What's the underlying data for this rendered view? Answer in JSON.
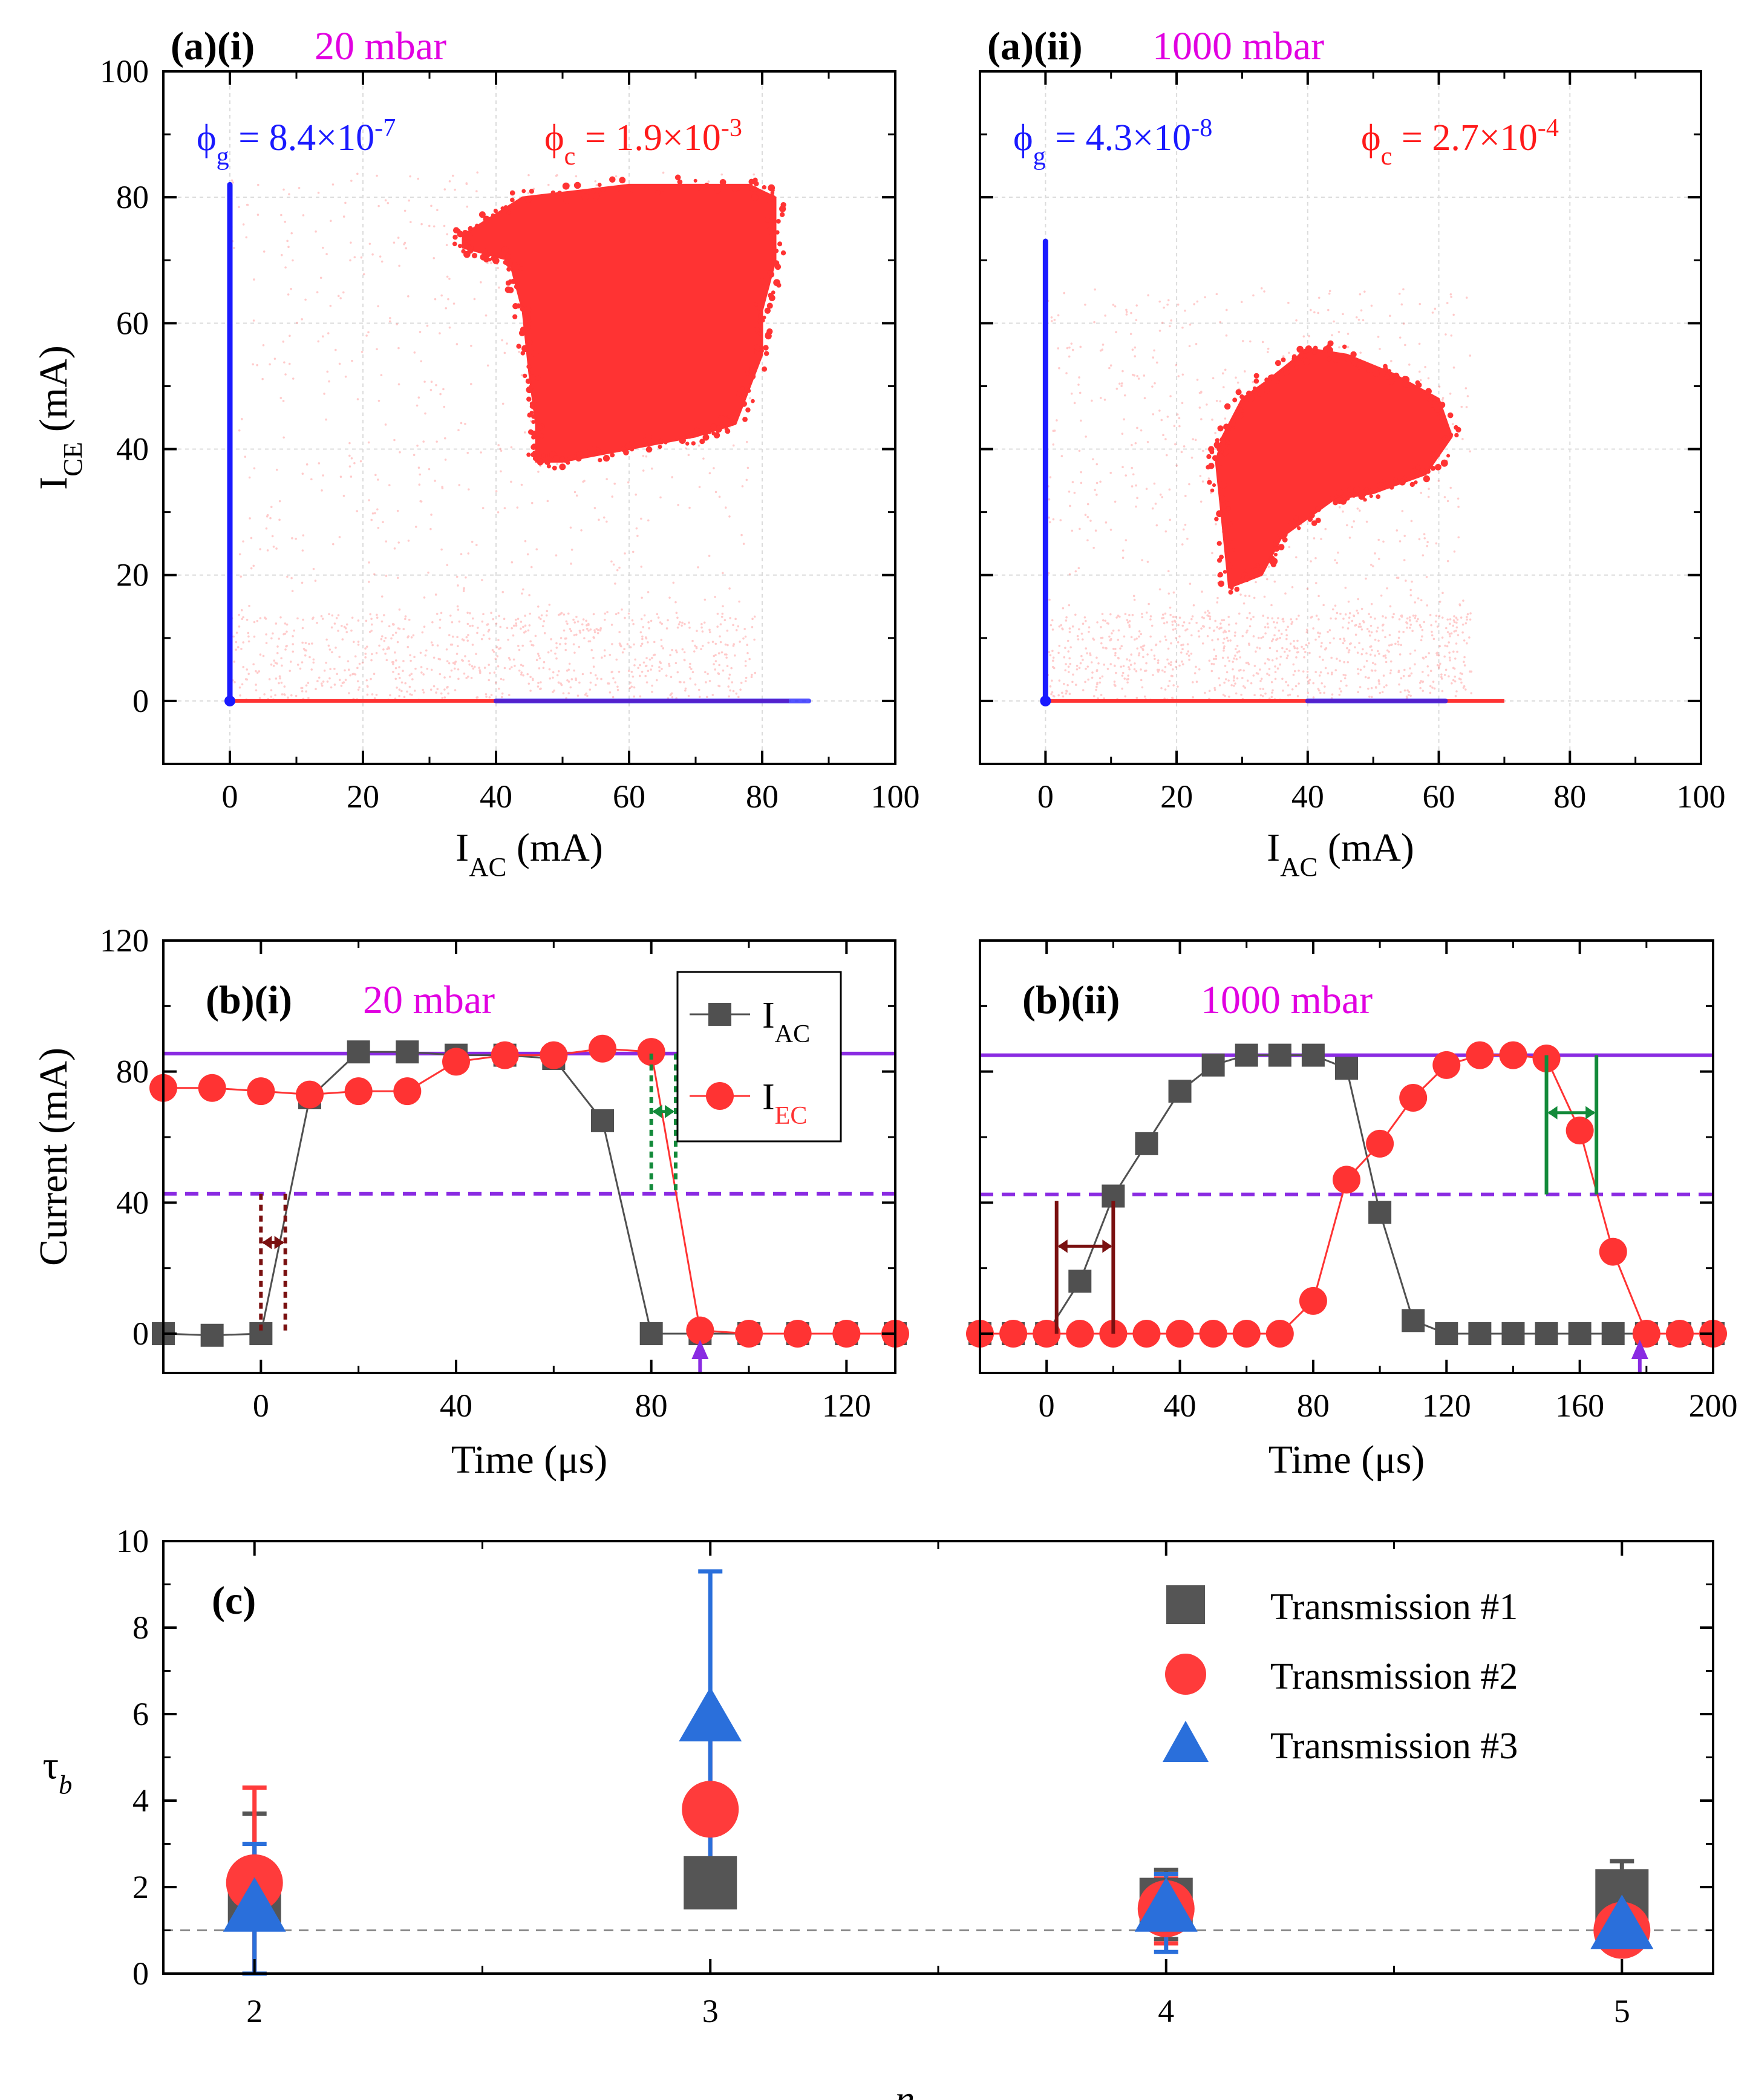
{
  "colors": {
    "gap_blue": "#1a1aff",
    "cell_red": "#ff3333",
    "ac_gray": "#505050",
    "pressure_magenta": "#e100e1",
    "level_purple": "#8a2be2",
    "tau_blue": "#2a6fdb",
    "tau_red": "#ff3b3b",
    "tau_gray": "#555555",
    "dark_red": "#7a1010",
    "green": "#138a3a"
  },
  "chart_data": [
    {
      "panel": "a-i",
      "type": "scatter",
      "label": "(a)(i)",
      "pressure": "20 mbar",
      "xlabel": "I",
      "xlabel_sub": "AC",
      "xlabel_unit": " (mA)",
      "ylabel": "I",
      "ylabel_sub": "CE",
      "ylabel_unit": " (mA)",
      "xlim": [
        -10,
        100
      ],
      "ylim": [
        -10,
        100
      ],
      "xticks": [
        0,
        20,
        40,
        60,
        80,
        100
      ],
      "yticks": [
        0,
        20,
        40,
        60,
        80,
        100
      ],
      "phi_g": {
        "prefix": "ϕ",
        "sub": "g",
        "mid": " = 8.4×10",
        "exp": "-7"
      },
      "phi_c": {
        "prefix": "ϕ",
        "sub": "c",
        "mid": " = 1.9×10",
        "exp": "-3"
      },
      "red_cloud": [
        [
          35,
          74
        ],
        [
          44,
          80
        ],
        [
          60,
          82
        ],
        [
          78,
          82
        ],
        [
          82,
          80
        ],
        [
          82,
          70
        ],
        [
          80,
          62
        ],
        [
          80,
          55
        ],
        [
          76,
          44
        ],
        [
          70,
          42
        ],
        [
          60,
          40
        ],
        [
          50,
          38
        ],
        [
          46,
          38
        ],
        [
          46,
          44
        ],
        [
          45,
          52
        ],
        [
          44,
          62
        ],
        [
          42,
          70
        ],
        [
          35,
          72
        ]
      ],
      "blue_vertical": {
        "x": 0,
        "y_from": 0,
        "y_to": 82
      },
      "blue_horizontal": {
        "y": 0,
        "x_from": 40,
        "x_to": 87
      },
      "red_axis_x_to": 84,
      "red_axis_y_to": 80
    },
    {
      "panel": "a-ii",
      "type": "scatter",
      "label": "(a)(ii)",
      "pressure": "1000 mbar",
      "xlabel": "I",
      "xlabel_sub": "AC",
      "xlabel_unit": " (mA)",
      "xlim": [
        -10,
        100
      ],
      "ylim": [
        -10,
        100
      ],
      "xticks": [
        0,
        20,
        40,
        60,
        80,
        100
      ],
      "phi_g": {
        "prefix": "ϕ",
        "sub": "g",
        "mid": " = 4.3×10",
        "exp": "-8"
      },
      "phi_c": {
        "prefix": "ϕ",
        "sub": "c",
        "mid": " = 2.7×10",
        "exp": "-4"
      },
      "red_cloud": [
        [
          27,
          42
        ],
        [
          30,
          48
        ],
        [
          34,
          51
        ],
        [
          40,
          56
        ],
        [
          46,
          55
        ],
        [
          53,
          52
        ],
        [
          60,
          48
        ],
        [
          62,
          42
        ],
        [
          58,
          36
        ],
        [
          50,
          33
        ],
        [
          44,
          32
        ],
        [
          36,
          26
        ],
        [
          33,
          20
        ],
        [
          28,
          18
        ],
        [
          27,
          28
        ],
        [
          26,
          38
        ]
      ],
      "blue_vertical": {
        "x": 0,
        "y_from": 0,
        "y_to": 73
      },
      "blue_horizontal": {
        "y": 0,
        "x_from": 40,
        "x_to": 61
      },
      "red_axis_x_to": 70,
      "red_axis_y_to": 62
    },
    {
      "panel": "b-i",
      "type": "line",
      "label": "(b)(i)",
      "pressure": "20 mbar",
      "xlabel": "Time (μs)",
      "ylabel": "Current (mA)",
      "xlim": [
        -20,
        130
      ],
      "ylim": [
        -12,
        120
      ],
      "xticks": [
        0,
        40,
        80,
        120
      ],
      "yticks": [
        0,
        40,
        80,
        120
      ],
      "level_full": 85.5,
      "level_half": 42.7,
      "series": [
        {
          "name": "I_AC",
          "label": "I",
          "sub": "AC",
          "x": [
            -20,
            -10,
            0,
            10,
            20,
            30,
            40,
            50,
            60,
            70,
            80,
            90,
            100,
            110,
            120,
            130
          ],
          "y": [
            0,
            -0.5,
            0,
            72,
            86,
            86,
            85,
            85,
            84,
            65,
            0,
            0,
            0,
            0,
            0,
            0
          ]
        },
        {
          "name": "I_EC",
          "label": "I",
          "sub": "EC",
          "x": [
            -20,
            -10,
            0,
            10,
            20,
            30,
            40,
            50,
            60,
            70,
            80,
            90,
            100,
            110,
            120,
            130
          ],
          "y": [
            75,
            75,
            74,
            73,
            74,
            74,
            83,
            85,
            85,
            87,
            86,
            1,
            0,
            0,
            0,
            0
          ]
        }
      ],
      "rise_marker": {
        "t1": 0,
        "t2": 5
      },
      "fall_marker": {
        "t1": 80,
        "t2": 85
      },
      "arrow_t": 90
    },
    {
      "panel": "b-ii",
      "type": "line",
      "label": "(b)(ii)",
      "pressure": "1000 mbar",
      "xlabel": "Time (μs)",
      "xlim": [
        -20,
        200
      ],
      "ylim": [
        -12,
        120
      ],
      "xticks": [
        0,
        40,
        80,
        120,
        160,
        200
      ],
      "level_full": 85,
      "level_half": 42.5,
      "series": [
        {
          "name": "I_AC",
          "x": [
            -20,
            -10,
            0,
            10,
            20,
            30,
            40,
            50,
            60,
            70,
            80,
            90,
            100,
            110,
            120,
            130,
            140,
            150,
            160,
            170,
            180,
            190,
            200
          ],
          "y": [
            0,
            0,
            0,
            16,
            42,
            58,
            74,
            82,
            85,
            85,
            85,
            81,
            37,
            4,
            0,
            0,
            0,
            0,
            0,
            0,
            0,
            0,
            0
          ]
        },
        {
          "name": "I_EC",
          "x": [
            -20,
            -10,
            0,
            10,
            20,
            30,
            40,
            50,
            60,
            70,
            80,
            90,
            100,
            110,
            120,
            130,
            140,
            150,
            160,
            170,
            180,
            190,
            200
          ],
          "y": [
            0,
            0,
            0,
            0,
            0,
            0,
            0,
            0,
            0,
            0,
            10,
            47,
            58,
            72,
            82,
            85,
            85,
            84,
            62,
            25,
            0,
            0,
            0
          ]
        }
      ],
      "rise_marker": {
        "t1": 3,
        "t2": 20
      },
      "fall_marker": {
        "t1": 150,
        "t2": 165
      },
      "arrow_t": 178
    },
    {
      "panel": "c",
      "type": "scatter",
      "label": "(c)",
      "xlabel": "n",
      "ylabel": "τ",
      "ylabel_sub": "b",
      "xlim": [
        1.8,
        5.2
      ],
      "ylim": [
        0,
        10
      ],
      "xticks": [
        2,
        3,
        4,
        5
      ],
      "yticks": [
        0,
        2,
        4,
        6,
        8,
        10
      ],
      "reference_line": 1,
      "series": [
        {
          "name": "Transmission #1",
          "marker": "square",
          "x": [
            2,
            3,
            4,
            5
          ],
          "y": [
            1.6,
            2.1,
            1.6,
            1.8
          ],
          "err_low": [
            0.0,
            1.9,
            0.8,
            1.0
          ],
          "err_high": [
            3.7,
            2.4,
            2.4,
            2.6
          ]
        },
        {
          "name": "Transmission #2",
          "marker": "circle",
          "x": [
            2,
            3,
            4,
            5
          ],
          "y": [
            2.1,
            3.8,
            1.5,
            1.0
          ],
          "err_low": [
            0.0,
            2.0,
            0.7,
            0.6
          ],
          "err_high": [
            4.3,
            5.6,
            2.2,
            1.7
          ]
        },
        {
          "name": "Transmission #3",
          "marker": "triangle",
          "x": [
            2,
            3,
            4,
            5
          ],
          "y": [
            1.5,
            5.9,
            1.5,
            1.1
          ],
          "err_low": [
            0.0,
            2.4,
            0.5,
            0.7
          ],
          "err_high": [
            3.0,
            9.3,
            2.3,
            1.6
          ]
        }
      ]
    }
  ]
}
